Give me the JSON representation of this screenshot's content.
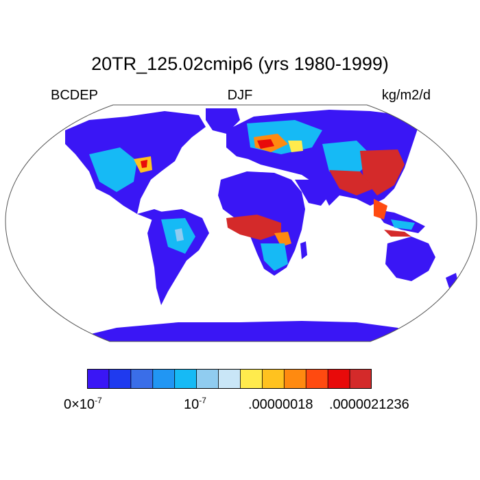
{
  "header": {
    "title": "20TR_125.02cmip6 (yrs 1980-1999)",
    "variable": "BCDEP",
    "season": "DJF",
    "units": "kg/m2/d"
  },
  "map": {
    "projection": "Robinson",
    "land_color": "#3a16f5",
    "ocean_color": "#ffffff"
  },
  "colorbar": {
    "colors": [
      "#3a16f5",
      "#1f3aef",
      "#3a6ee8",
      "#2196f3",
      "#16baf5",
      "#90ccf0",
      "#c9e6f7",
      "#ffeb4d",
      "#ffc21f",
      "#ff8a10",
      "#ff4a10",
      "#e80a0a",
      "#d42a2a"
    ],
    "labels": [
      {
        "mantissa": "0×10",
        "exponent": "-7"
      },
      {
        "mantissa": "10",
        "exponent": "-7"
      },
      {
        "text": ".00000018"
      },
      {
        "text": ".0000021236"
      }
    ]
  }
}
